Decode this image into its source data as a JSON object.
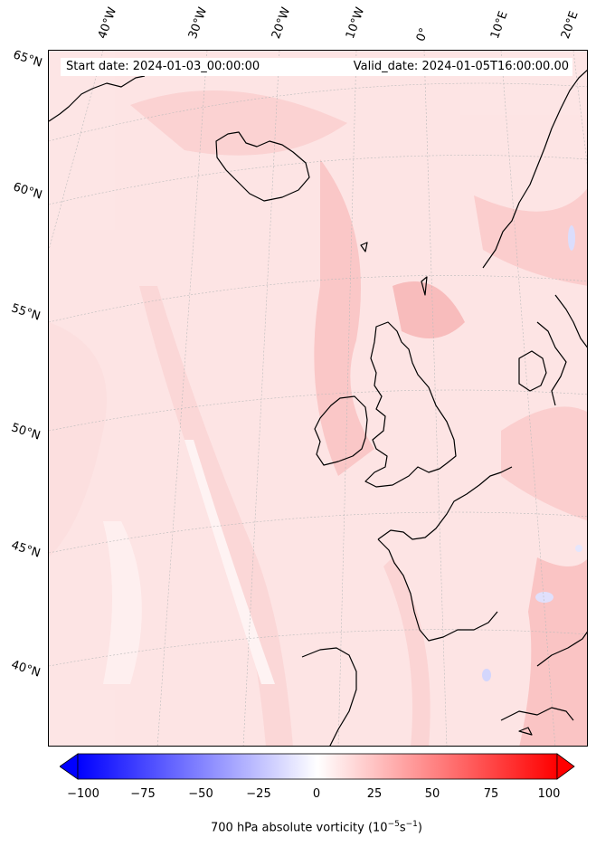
{
  "header": {
    "start_date": "Start date: 2024-01-03_00:00:00",
    "valid_date": "Valid_date: 2024-01-05T16:00:00.00"
  },
  "longitude_labels": [
    "40°W",
    "30°W",
    "20°W",
    "10°W",
    "0°",
    "10°E",
    "20°E"
  ],
  "latitude_labels": [
    "65°N",
    "60°N",
    "55°N",
    "50°N",
    "45°N",
    "40°N"
  ],
  "colorbar": {
    "ticks": [
      "−100",
      "−75",
      "−50",
      "−25",
      "0",
      "25",
      "50",
      "75",
      "100"
    ],
    "label": "700 hPa absolute vorticity (10",
    "label_exp": "−5",
    "label_unit_s": "s",
    "label_exp2": "−1",
    "label_close": ")",
    "min": -100,
    "max": 100,
    "extend": "both",
    "colormap": "bwr",
    "low_color": "#0000ff",
    "mid_color": "#ffffff",
    "high_color": "#ff0000"
  },
  "map": {
    "variable": "700 hPa absolute vorticity",
    "background_tint": "#fde9e9",
    "coastline_color": "#000000",
    "gridline_color": "#bbbbbb"
  }
}
